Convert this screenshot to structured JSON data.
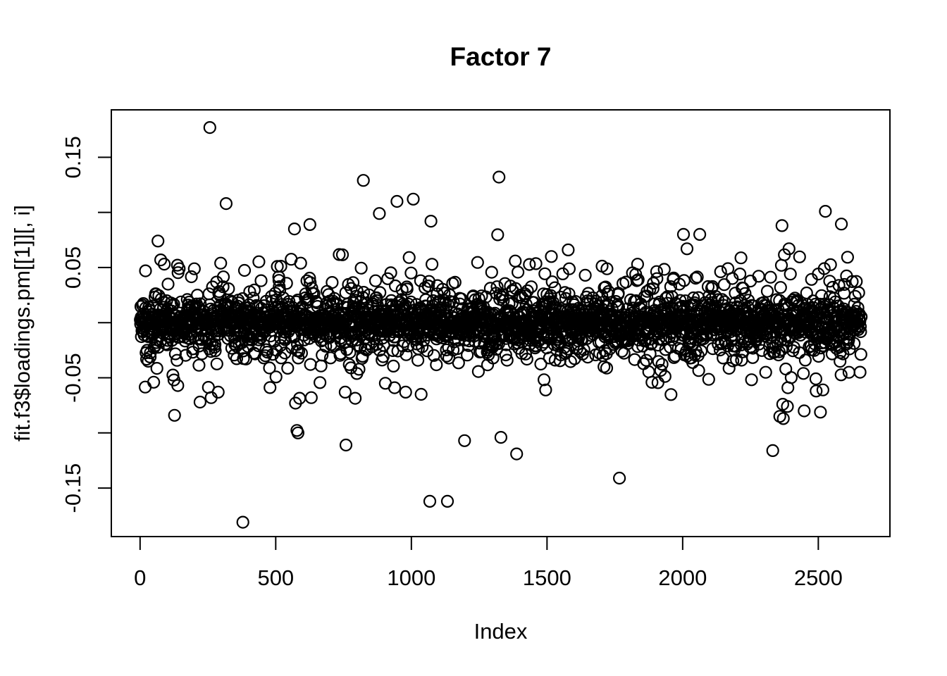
{
  "chart_data": {
    "type": "scatter",
    "title": "Factor 7",
    "xlabel": "Index",
    "ylabel": "fit.f3$loadings.pm[[1]][, i]",
    "xlim": [
      -106,
      2764
    ],
    "ylim": [
      -0.194,
      0.193
    ],
    "x_ticks": [
      0,
      500,
      1000,
      1500,
      2000,
      2500
    ],
    "x_tick_labels": [
      "0",
      "500",
      "1000",
      "1500",
      "2000",
      "2500"
    ],
    "y_ticks": [
      -0.15,
      -0.1,
      -0.05,
      0.0,
      0.05,
      0.1,
      0.15
    ],
    "y_labeled_ticks": [
      0.15,
      0.05,
      -0.05,
      -0.15
    ],
    "y_tick_labels": [
      "0.15",
      "0.05",
      "-0.05",
      "-0.15"
    ],
    "n_points": 2658,
    "marker": {
      "shape": "open-circle",
      "radius_px": 8,
      "stroke_width": 2.2,
      "color": "#000000"
    },
    "axis_color": "#000000",
    "background_color": "#ffffff",
    "grid": false,
    "legend": false,
    "generator": {
      "seed": 42,
      "distribution": "laplace",
      "scale": 0.012,
      "clip": 0.1
    },
    "outliers": [
      [
        257,
        0.177
      ],
      [
        823,
        0.129
      ],
      [
        1323,
        0.132
      ],
      [
        317,
        0.108
      ],
      [
        947,
        0.11
      ],
      [
        1007,
        0.112
      ],
      [
        882,
        0.099
      ],
      [
        2526,
        0.101
      ],
      [
        2366,
        0.088
      ],
      [
        626,
        0.089
      ],
      [
        569,
        0.085
      ],
      [
        2003,
        0.08
      ],
      [
        2063,
        0.08
      ],
      [
        66,
        0.074
      ],
      [
        2392,
        0.067
      ],
      [
        2016,
        0.067
      ],
      [
        1578,
        0.066
      ],
      [
        1516,
        0.06
      ],
      [
        1834,
        0.053
      ],
      [
        297,
        0.054
      ],
      [
        2364,
        0.052
      ],
      [
        506,
        0.051
      ],
      [
        592,
        0.054
      ],
      [
        144,
        0.049
      ],
      [
        2167,
        0.049
      ],
      [
        2522,
        0.049
      ],
      [
        20,
        0.047
      ],
      [
        379,
        -0.181
      ],
      [
        1068,
        -0.162
      ],
      [
        1133,
        -0.162
      ],
      [
        1767,
        -0.141
      ],
      [
        1388,
        -0.119
      ],
      [
        2332,
        -0.116
      ],
      [
        759,
        -0.111
      ],
      [
        1196,
        -0.107
      ],
      [
        1330,
        -0.104
      ],
      [
        127,
        -0.084
      ],
      [
        2358,
        -0.085
      ],
      [
        2371,
        -0.087
      ],
      [
        2448,
        -0.08
      ],
      [
        2386,
        -0.076
      ],
      [
        2369,
        -0.074
      ],
      [
        221,
        -0.072
      ],
      [
        573,
        -0.073
      ],
      [
        262,
        -0.068
      ],
      [
        631,
        -0.068
      ],
      [
        2492,
        -0.062
      ],
      [
        2517,
        -0.061
      ],
      [
        756,
        -0.063
      ],
      [
        979,
        -0.063
      ],
      [
        938,
        -0.059
      ],
      [
        2388,
        -0.059
      ],
      [
        139,
        -0.057
      ],
      [
        904,
        -0.055
      ],
      [
        50,
        -0.054
      ],
      [
        125,
        -0.052
      ],
      [
        288,
        -0.063
      ],
      [
        2306,
        -0.045
      ],
      [
        2380,
        -0.042
      ],
      [
        2613,
        -0.045
      ]
    ]
  }
}
